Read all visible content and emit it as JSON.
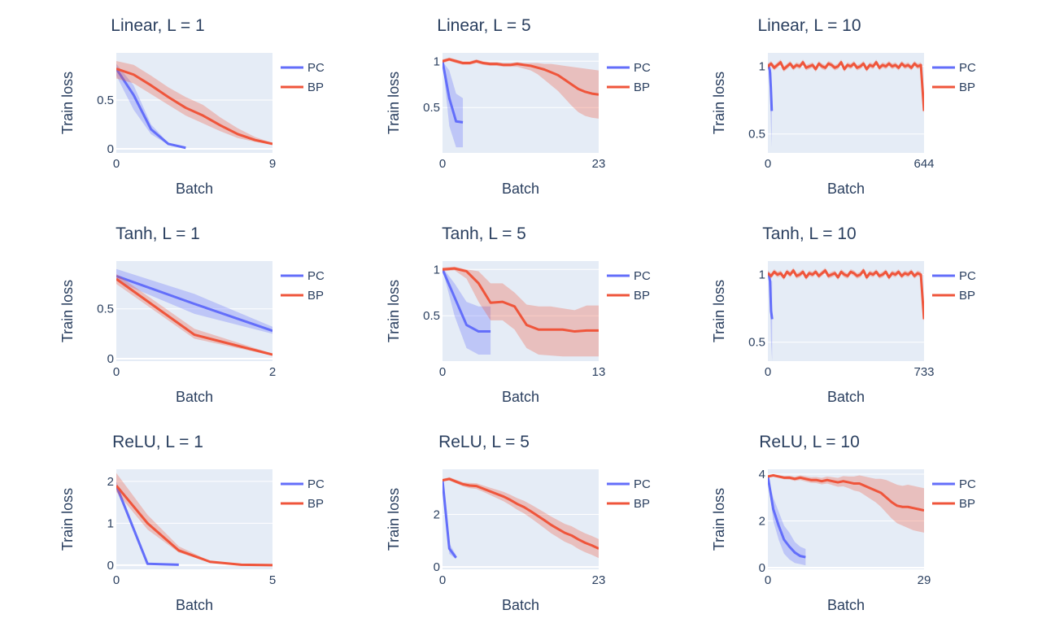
{
  "colors": {
    "PC": "#636efa",
    "BP": "#ef553b",
    "plot_bg": "#e5ecf6",
    "text": "#2a3f5f"
  },
  "legend": [
    "PC",
    "BP"
  ],
  "chart_data": [
    {
      "type": "line",
      "title": "Linear, L = 1",
      "xlabel": "Batch",
      "ylabel": "Train loss",
      "xlim": [
        0,
        9
      ],
      "xticks": [
        0,
        9
      ],
      "ylim": [
        -0.042,
        0.983
      ],
      "yticks": [
        "0",
        "0.5"
      ],
      "ytick_values": [
        0,
        0.5
      ],
      "series": [
        {
          "name": "PC",
          "x": [
            0,
            1,
            2,
            3,
            4
          ],
          "y": [
            0.82,
            0.55,
            0.2,
            0.05,
            0.01
          ],
          "lo": [
            0.75,
            0.4,
            0.15,
            0.04,
            0.01
          ],
          "hi": [
            0.87,
            0.65,
            0.25,
            0.06,
            0.01
          ]
        },
        {
          "name": "BP",
          "x": [
            0,
            1,
            2,
            3,
            4,
            5,
            6,
            7,
            8,
            9
          ],
          "y": [
            0.82,
            0.76,
            0.65,
            0.53,
            0.42,
            0.34,
            0.24,
            0.15,
            0.09,
            0.05
          ],
          "lo": [
            0.72,
            0.67,
            0.56,
            0.45,
            0.34,
            0.26,
            0.18,
            0.11,
            0.07,
            0.04
          ],
          "hi": [
            0.9,
            0.86,
            0.75,
            0.63,
            0.53,
            0.45,
            0.32,
            0.21,
            0.12,
            0.06
          ]
        }
      ]
    },
    {
      "type": "line",
      "title": "Linear, L = 5",
      "xlabel": "Batch",
      "ylabel": "Train loss",
      "xlim": [
        0,
        23
      ],
      "xticks": [
        0,
        23
      ],
      "ylim": [
        0.01,
        1.09
      ],
      "yticks": [
        "0.5",
        "1"
      ],
      "ytick_values": [
        0.5,
        1
      ],
      "series": [
        {
          "name": "PC",
          "x": [
            0,
            1,
            2,
            3
          ],
          "y": [
            1.0,
            0.6,
            0.35,
            0.34
          ],
          "lo": [
            1.0,
            0.3,
            0.07,
            0.07
          ],
          "hi": [
            1.0,
            0.9,
            0.65,
            0.6
          ]
        },
        {
          "name": "BP",
          "x": [
            0,
            1,
            2,
            3,
            4,
            5,
            6,
            7,
            8,
            9,
            10,
            11,
            12,
            13,
            14,
            15,
            16,
            17,
            18,
            19,
            20,
            21,
            22,
            23
          ],
          "y": [
            1,
            1.02,
            1.0,
            0.98,
            0.98,
            1.0,
            0.98,
            0.97,
            0.97,
            0.96,
            0.96,
            0.97,
            0.96,
            0.95,
            0.93,
            0.91,
            0.88,
            0.85,
            0.8,
            0.75,
            0.7,
            0.67,
            0.65,
            0.64
          ],
          "lo": [
            0.98,
            1.0,
            0.98,
            0.96,
            0.96,
            0.98,
            0.96,
            0.95,
            0.95,
            0.94,
            0.94,
            0.94,
            0.92,
            0.9,
            0.86,
            0.8,
            0.74,
            0.68,
            0.6,
            0.52,
            0.45,
            0.41,
            0.39,
            0.38
          ],
          "hi": [
            1.02,
            1.04,
            1.02,
            1.0,
            1.0,
            1.02,
            1.0,
            0.99,
            0.99,
            0.98,
            0.98,
            0.99,
            0.98,
            0.98,
            0.98,
            0.97,
            0.97,
            0.96,
            0.95,
            0.94,
            0.93,
            0.92,
            0.91,
            0.9
          ]
        }
      ]
    },
    {
      "type": "line",
      "title": "Linear, L = 10",
      "xlabel": "Batch",
      "ylabel": "Train loss",
      "xlim": [
        0,
        644
      ],
      "xticks": [
        0,
        644
      ],
      "ylim": [
        0.36,
        1.1
      ],
      "yticks": [
        "0.5",
        "1"
      ],
      "ytick_values": [
        0.5,
        1
      ],
      "series": [
        {
          "name": "PC",
          "x": [
            0,
            4,
            8,
            12,
            16
          ],
          "y": [
            1.0,
            1.0,
            0.97,
            0.85,
            0.67
          ],
          "lo": [
            1.0,
            0.98,
            0.9,
            0.6,
            0.4
          ],
          "hi": [
            1.02,
            1.02,
            1.0,
            0.98,
            0.95
          ]
        },
        {
          "name": "BP",
          "x_range": [
            0,
            644
          ],
          "band": 0.02,
          "y": [
            1.0,
            1.02,
            0.99,
            1.01,
            1.03,
            0.98,
            1.0,
            1.02,
            0.99,
            1.01,
            1.0,
            1.03,
            0.99,
            1.0,
            1.01,
            0.98,
            1.02,
            1.0,
            0.99,
            1.02,
            1.01,
            0.99,
            1.0,
            1.03,
            0.98,
            1.01,
            1.0,
            1.02,
            0.99,
            1.0,
            1.02,
            0.98,
            1.01,
            1.0,
            1.03,
            0.99,
            1.01,
            1.0,
            1.02,
            1.0,
            1.01,
            0.99,
            1.02,
            1.0,
            1.01,
            0.99,
            1.02,
            1.0,
            1.01,
            0.67
          ]
        }
      ]
    },
    {
      "type": "line",
      "title": "Tanh, L = 1",
      "xlabel": "Batch",
      "ylabel": "Train loss",
      "xlim": [
        0,
        2
      ],
      "xticks": [
        0,
        2
      ],
      "ylim": [
        -0.025,
        0.98
      ],
      "yticks": [
        "0",
        "0.5"
      ],
      "ytick_values": [
        0,
        0.5
      ],
      "series": [
        {
          "name": "PC",
          "x": [
            0,
            1,
            2
          ],
          "y": [
            0.83,
            0.55,
            0.28
          ],
          "lo": [
            0.78,
            0.45,
            0.25
          ],
          "hi": [
            0.9,
            0.65,
            0.32
          ]
        },
        {
          "name": "BP",
          "x": [
            0,
            1,
            2
          ],
          "y": [
            0.8,
            0.24,
            0.04
          ],
          "lo": [
            0.75,
            0.2,
            0.03
          ],
          "hi": [
            0.85,
            0.3,
            0.05
          ]
        }
      ]
    },
    {
      "type": "line",
      "title": "Tanh, L = 5",
      "xlabel": "Batch",
      "ylabel": "Train loss",
      "xlim": [
        0,
        13
      ],
      "xticks": [
        0,
        13
      ],
      "ylim": [
        0.01,
        1.09
      ],
      "yticks": [
        "0.5",
        "1"
      ],
      "ytick_values": [
        0.5,
        1
      ],
      "series": [
        {
          "name": "PC",
          "x": [
            0,
            1,
            2,
            3,
            4
          ],
          "y": [
            1.0,
            0.7,
            0.4,
            0.33,
            0.33
          ],
          "lo": [
            1.0,
            0.5,
            0.15,
            0.08,
            0.08
          ],
          "hi": [
            1.02,
            0.85,
            0.65,
            0.6,
            0.6
          ]
        },
        {
          "name": "BP",
          "x": [
            0,
            1,
            2,
            3,
            4,
            5,
            6,
            7,
            8,
            9,
            10,
            11,
            12,
            13
          ],
          "y": [
            1,
            1.01,
            0.98,
            0.85,
            0.64,
            0.65,
            0.6,
            0.4,
            0.35,
            0.35,
            0.35,
            0.33,
            0.34,
            0.34
          ],
          "lo": [
            0.98,
            0.99,
            0.9,
            0.65,
            0.45,
            0.45,
            0.35,
            0.15,
            0.08,
            0.07,
            0.06,
            0.06,
            0.06,
            0.06
          ],
          "hi": [
            1.02,
            1.03,
            1.0,
            0.98,
            0.85,
            0.85,
            0.75,
            0.62,
            0.6,
            0.6,
            0.58,
            0.56,
            0.61,
            0.61
          ]
        }
      ]
    },
    {
      "type": "line",
      "title": "Tanh, L = 10",
      "xlabel": "Batch",
      "ylabel": "Train loss",
      "xlim": [
        0,
        733
      ],
      "xticks": [
        0,
        733
      ],
      "ylim": [
        0.36,
        1.1
      ],
      "yticks": [
        "0.5",
        "1"
      ],
      "ytick_values": [
        0.5,
        1
      ],
      "series": [
        {
          "name": "PC",
          "x": [
            0,
            5,
            10,
            15,
            20
          ],
          "y": [
            1.0,
            1.0,
            0.95,
            0.73,
            0.67
          ],
          "lo": [
            1.0,
            0.98,
            0.85,
            0.5,
            0.36
          ],
          "hi": [
            1.02,
            1.02,
            1.0,
            0.96,
            0.95
          ]
        },
        {
          "name": "BP",
          "x_range": [
            0,
            733
          ],
          "band": 0.02,
          "y": [
            1.01,
            0.99,
            1.02,
            1.0,
            1.01,
            0.98,
            1.02,
            1.0,
            1.03,
            0.99,
            1.0,
            1.02,
            0.98,
            1.01,
            1.0,
            1.02,
            0.99,
            1.01,
            1.03,
            0.99,
            1.0,
            1.01,
            0.98,
            1.02,
            1.0,
            0.99,
            1.02,
            1.01,
            0.99,
            1.0,
            1.03,
            0.98,
            1.01,
            1.0,
            1.02,
            0.99,
            1.0,
            1.02,
            0.98,
            1.01,
            1.0,
            1.02,
            0.99,
            1.01,
            1.0,
            1.02,
            0.99,
            1.01,
            1.0,
            0.67
          ]
        }
      ]
    },
    {
      "type": "line",
      "title": "ReLU, L = 1",
      "xlabel": "Batch",
      "ylabel": "Train loss",
      "xlim": [
        0,
        5
      ],
      "xticks": [
        0,
        5
      ],
      "ylim": [
        -0.1,
        2.29
      ],
      "yticks": [
        "0",
        "1",
        "2"
      ],
      "ytick_values": [
        0,
        1,
        2
      ],
      "series": [
        {
          "name": "PC",
          "x": [
            0,
            1,
            2
          ],
          "y": [
            1.9,
            0.03,
            0.01
          ],
          "lo": [
            1.8,
            0.02,
            0.01
          ],
          "hi": [
            2.0,
            0.04,
            0.01
          ]
        },
        {
          "name": "BP",
          "x": [
            0,
            1,
            2,
            3,
            4,
            5
          ],
          "y": [
            1.9,
            1.0,
            0.35,
            0.08,
            0.01,
            0.0
          ],
          "lo": [
            1.75,
            0.85,
            0.3,
            0.06,
            0.01,
            0
          ],
          "hi": [
            2.2,
            1.2,
            0.45,
            0.1,
            0.02,
            0.01
          ]
        }
      ]
    },
    {
      "type": "line",
      "title": "ReLU, L = 5",
      "xlabel": "Batch",
      "ylabel": "Train loss",
      "xlim": [
        0,
        23
      ],
      "xticks": [
        0,
        23
      ],
      "ylim": [
        -0.09,
        3.72
      ],
      "yticks": [
        "0",
        "2"
      ],
      "ytick_values": [
        0,
        2
      ],
      "series": [
        {
          "name": "PC",
          "x": [
            0,
            1,
            2
          ],
          "y": [
            3.3,
            0.7,
            0.35
          ],
          "lo": [
            3.3,
            0.5,
            0.3
          ],
          "hi": [
            3.3,
            0.9,
            0.45
          ]
        },
        {
          "name": "BP",
          "x": [
            0,
            1,
            2,
            3,
            4,
            5,
            6,
            7,
            8,
            9,
            10,
            11,
            12,
            13,
            14,
            15,
            16,
            17,
            18,
            19,
            20,
            21,
            22,
            23
          ],
          "y": [
            3.3,
            3.35,
            3.25,
            3.15,
            3.1,
            3.08,
            2.98,
            2.88,
            2.78,
            2.68,
            2.55,
            2.4,
            2.28,
            2.12,
            1.95,
            1.78,
            1.6,
            1.45,
            1.3,
            1.2,
            1.05,
            0.92,
            0.82,
            0.7
          ],
          "lo": [
            3.25,
            3.3,
            3.18,
            3.07,
            3.0,
            2.97,
            2.86,
            2.74,
            2.62,
            2.5,
            2.35,
            2.18,
            2.04,
            1.86,
            1.67,
            1.48,
            1.28,
            1.12,
            0.96,
            0.85,
            0.69,
            0.56,
            0.46,
            0.34
          ],
          "hi": [
            3.35,
            3.42,
            3.32,
            3.23,
            3.2,
            3.19,
            3.1,
            3.02,
            2.94,
            2.86,
            2.75,
            2.62,
            2.52,
            2.38,
            2.23,
            2.08,
            1.92,
            1.78,
            1.64,
            1.55,
            1.41,
            1.28,
            1.18,
            1.06
          ]
        }
      ]
    },
    {
      "type": "line",
      "title": "ReLU, L = 10",
      "xlabel": "Batch",
      "ylabel": "Train loss",
      "xlim": [
        0,
        29
      ],
      "xticks": [
        0,
        29
      ],
      "ylim": [
        -0.07,
        4.21
      ],
      "yticks": [
        "0",
        "2",
        "4"
      ],
      "ytick_values": [
        0,
        2,
        4
      ],
      "series": [
        {
          "name": "PC",
          "x": [
            0,
            1,
            2,
            3,
            4,
            5,
            6,
            7
          ],
          "y": [
            3.9,
            2.5,
            1.8,
            1.2,
            0.9,
            0.65,
            0.5,
            0.45
          ],
          "lo": [
            3.9,
            2.0,
            1.2,
            0.6,
            0.35,
            0.2,
            0.15,
            0.1
          ],
          "hi": [
            3.9,
            3.0,
            2.4,
            1.8,
            1.5,
            1.1,
            0.9,
            0.8
          ]
        },
        {
          "name": "BP",
          "x": [
            0,
            1,
            2,
            3,
            4,
            5,
            6,
            7,
            8,
            9,
            10,
            11,
            12,
            13,
            14,
            15,
            16,
            17,
            18,
            19,
            20,
            21,
            22,
            23,
            24,
            25,
            26,
            27,
            28,
            29
          ],
          "y": [
            3.9,
            3.95,
            3.9,
            3.85,
            3.85,
            3.8,
            3.85,
            3.8,
            3.75,
            3.75,
            3.7,
            3.75,
            3.7,
            3.65,
            3.7,
            3.65,
            3.6,
            3.6,
            3.5,
            3.4,
            3.3,
            3.2,
            3.0,
            2.8,
            2.65,
            2.6,
            2.6,
            2.55,
            2.5,
            2.45
          ],
          "lo": [
            3.85,
            3.9,
            3.84,
            3.78,
            3.77,
            3.71,
            3.75,
            3.69,
            3.63,
            3.62,
            3.56,
            3.6,
            3.53,
            3.46,
            3.48,
            3.4,
            3.3,
            3.25,
            3.1,
            2.95,
            2.8,
            2.6,
            2.35,
            2.1,
            1.9,
            1.8,
            1.7,
            1.6,
            1.55,
            1.5
          ],
          "hi": [
            3.95,
            4.0,
            3.96,
            3.92,
            3.93,
            3.89,
            3.95,
            3.91,
            3.87,
            3.88,
            3.84,
            3.9,
            3.87,
            3.84,
            3.92,
            3.9,
            3.9,
            3.95,
            3.9,
            3.85,
            3.8,
            3.8,
            3.75,
            3.65,
            3.55,
            3.5,
            3.55,
            3.5,
            3.45,
            3.4
          ]
        }
      ]
    }
  ]
}
